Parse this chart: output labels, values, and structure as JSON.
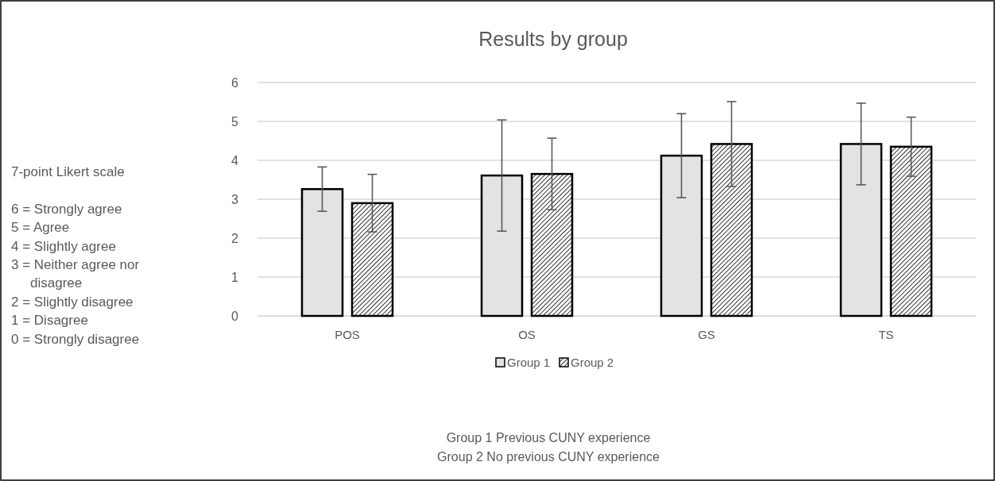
{
  "chart_data": {
    "type": "bar",
    "title": "Results by group",
    "categories": [
      "POS",
      "OS",
      "GS",
      "TS"
    ],
    "series": [
      {
        "name": "Group 1",
        "color": "#e3e3e3",
        "values": [
          3.26,
          3.61,
          4.12,
          4.42
        ],
        "errors": [
          0.57,
          1.43,
          1.08,
          1.05
        ]
      },
      {
        "name": "Group 2",
        "color": "#000000",
        "values": [
          2.9,
          3.65,
          4.42,
          4.35
        ],
        "errors": [
          0.74,
          0.92,
          1.09,
          0.76
        ]
      }
    ],
    "ylim": [
      0,
      6
    ],
    "yticks": [
      0,
      1,
      2,
      3,
      4,
      5,
      6
    ],
    "grid": "y",
    "legend": "bottom",
    "annotations": [
      "7-point Likert scale",
      "6 = Strongly agree",
      "5 = Agree",
      "4 = Slightly agree",
      "3 = Neither agree nor disagree",
      "2 = Slightly disagree",
      "1 = Disagree",
      "0 = Strongly disagree",
      "Group 1 Previous CUNY experience",
      "Group 2 No previous CUNY experience"
    ]
  }
}
